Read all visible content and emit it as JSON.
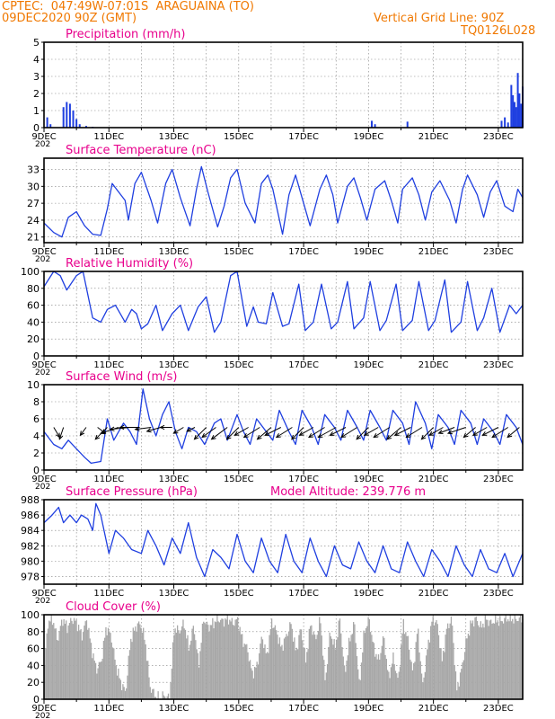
{
  "header": {
    "line1": "CPTEC:  047:49W-07:01S  ARAGUAINA (TO)",
    "line2": "09DEC2020 90Z (GMT)",
    "right1": "Vertical Grid Line: 90Z",
    "right2": "TQ0126L028"
  },
  "colors": {
    "header": "#f07800",
    "title": "#e8008c",
    "series": "#1f3fe0",
    "cloud": "#a8a8a8",
    "grid": "#808080",
    "axis": "#000000",
    "wind_arrow": "#000000"
  },
  "x_axis": {
    "labels": [
      "9DEC",
      "11DEC",
      "13DEC",
      "15DEC",
      "17DEC",
      "19DEC",
      "21DEC",
      "23DEC"
    ],
    "under_label": "202"
  },
  "chart_data": [
    {
      "id": "precip",
      "type": "bar",
      "title": "Precipitation (mm/h)",
      "ylim": [
        0,
        5
      ],
      "yticks": [
        "0",
        "1",
        "2",
        "3",
        "4",
        "5"
      ],
      "x": [
        0.1,
        0.2,
        0.6,
        0.7,
        0.8,
        0.9,
        1.0,
        1.1,
        1.3,
        1.5,
        10.1,
        10.2,
        11.2,
        14.1,
        14.2,
        14.3,
        14.4,
        14.45,
        14.5,
        14.55,
        14.6,
        14.65,
        14.7,
        14.75
      ],
      "values": [
        0.6,
        0.2,
        1.2,
        1.5,
        1.4,
        1.0,
        0.5,
        0.2,
        0.1,
        0.05,
        0.4,
        0.2,
        0.35,
        0.4,
        0.6,
        0.3,
        2.5,
        1.9,
        1.5,
        1.2,
        3.2,
        2.0,
        1.4,
        2.4
      ]
    },
    {
      "id": "temp",
      "type": "line",
      "title": "Surface Temperature (nC)",
      "ylim": [
        20,
        35
      ],
      "yticks": [
        "21",
        "24",
        "27",
        "30",
        "33"
      ],
      "x": [
        0,
        0.3,
        0.55,
        0.75,
        1.0,
        1.25,
        1.5,
        1.75,
        1.95,
        2.1,
        2.3,
        2.5,
        2.6,
        2.8,
        3.0,
        3.3,
        3.5,
        3.75,
        3.95,
        4.2,
        4.5,
        4.7,
        4.85,
        5.05,
        5.35,
        5.55,
        5.75,
        5.95,
        6.2,
        6.5,
        6.7,
        6.9,
        7.05,
        7.35,
        7.55,
        7.75,
        7.95,
        8.2,
        8.5,
        8.7,
        8.9,
        9.05,
        9.35,
        9.55,
        9.75,
        9.95,
        10.2,
        10.5,
        10.7,
        10.9,
        11.05,
        11.35,
        11.55,
        11.75,
        11.95,
        12.2,
        12.5,
        12.7,
        12.9,
        13.05,
        13.35,
        13.55,
        13.75,
        13.95,
        14.2,
        14.45,
        14.6,
        14.75
      ],
      "values": [
        23.5,
        21.8,
        21.0,
        24.5,
        25.5,
        23.0,
        21.5,
        21.3,
        26.0,
        30.5,
        29.0,
        27.5,
        24.0,
        30.5,
        32.5,
        27.5,
        23.5,
        30.5,
        33.0,
        28.0,
        23.0,
        29.5,
        33.5,
        29.0,
        22.8,
        26.5,
        31.5,
        33.0,
        27.0,
        23.5,
        30.5,
        32.0,
        29.5,
        21.5,
        28.5,
        32.0,
        28.0,
        23.0,
        29.5,
        32.0,
        28.5,
        23.5,
        30.0,
        31.5,
        28.0,
        24.0,
        29.5,
        31.0,
        27.5,
        23.5,
        29.5,
        31.5,
        28.5,
        24.0,
        29.0,
        31.0,
        27.5,
        23.5,
        29.5,
        32.0,
        28.5,
        24.5,
        29.0,
        31.0,
        26.5,
        25.5,
        29.5,
        28.0
      ]
    },
    {
      "id": "rh",
      "type": "line",
      "title": "Relative Humidity (%)",
      "ylim": [
        0,
        100
      ],
      "yticks": [
        "0",
        "20",
        "40",
        "60",
        "80",
        "100"
      ],
      "x": [
        0,
        0.3,
        0.5,
        0.7,
        1.0,
        1.2,
        1.5,
        1.75,
        1.95,
        2.2,
        2.5,
        2.7,
        2.85,
        3.0,
        3.2,
        3.45,
        3.65,
        3.95,
        4.2,
        4.45,
        4.75,
        5.0,
        5.25,
        5.45,
        5.75,
        5.95,
        6.25,
        6.45,
        6.6,
        6.85,
        7.05,
        7.35,
        7.55,
        7.85,
        8.05,
        8.3,
        8.55,
        8.85,
        9.05,
        9.35,
        9.55,
        9.85,
        10.05,
        10.35,
        10.55,
        10.85,
        11.05,
        11.35,
        11.55,
        11.85,
        12.05,
        12.35,
        12.55,
        12.85,
        13.05,
        13.35,
        13.55,
        13.8,
        14.05,
        14.35,
        14.55,
        14.75
      ],
      "values": [
        82,
        100,
        95,
        78,
        95,
        100,
        45,
        40,
        55,
        60,
        40,
        55,
        50,
        32,
        38,
        60,
        30,
        50,
        60,
        30,
        58,
        70,
        28,
        40,
        95,
        100,
        35,
        58,
        40,
        38,
        75,
        35,
        38,
        85,
        30,
        40,
        85,
        32,
        40,
        88,
        32,
        45,
        88,
        30,
        42,
        85,
        30,
        42,
        88,
        30,
        42,
        90,
        28,
        40,
        88,
        30,
        45,
        80,
        28,
        60,
        50,
        60
      ]
    },
    {
      "id": "wind",
      "type": "line",
      "title": "Surface Wind (m/s)",
      "ylim": [
        0,
        10
      ],
      "yticks": [
        "0",
        "2",
        "4",
        "6",
        "8",
        "10"
      ],
      "x": [
        0,
        0.3,
        0.55,
        0.75,
        1.0,
        1.25,
        1.45,
        1.75,
        1.95,
        2.15,
        2.45,
        2.65,
        2.85,
        3.05,
        3.25,
        3.45,
        3.65,
        3.85,
        4.05,
        4.25,
        4.45,
        4.7,
        4.95,
        5.25,
        5.45,
        5.65,
        5.95,
        6.15,
        6.35,
        6.55,
        6.85,
        7.05,
        7.25,
        7.55,
        7.75,
        7.95,
        8.25,
        8.45,
        8.65,
        8.95,
        9.15,
        9.35,
        9.65,
        9.85,
        10.05,
        10.35,
        10.55,
        10.75,
        11.05,
        11.25,
        11.45,
        11.75,
        11.95,
        12.15,
        12.45,
        12.65,
        12.85,
        13.15,
        13.35,
        13.55,
        13.85,
        14.05,
        14.25,
        14.55,
        14.75
      ],
      "values": [
        4.5,
        3.0,
        2.5,
        3.5,
        2.5,
        1.5,
        0.8,
        1.0,
        6.0,
        3.5,
        5.5,
        4.5,
        3.0,
        9.5,
        6.0,
        4.0,
        6.5,
        8.0,
        4.5,
        2.5,
        5.0,
        4.5,
        3.0,
        5.5,
        6.0,
        3.5,
        6.5,
        4.5,
        3.0,
        6.0,
        4.5,
        3.5,
        7.0,
        4.5,
        3.0,
        7.0,
        5.0,
        3.0,
        6.5,
        5.0,
        3.5,
        7.0,
        5.0,
        3.5,
        7.0,
        5.0,
        3.5,
        7.0,
        5.5,
        3.0,
        8.0,
        5.5,
        2.5,
        6.5,
        5.0,
        3.0,
        7.0,
        5.5,
        3.0,
        6.0,
        4.5,
        3.0,
        6.5,
        5.0,
        3.0
      ]
    },
    {
      "id": "press",
      "type": "line",
      "title": "Surface Pressure (hPa)",
      "annotation": "Model Altitude: 239.776 m",
      "ylim": [
        977,
        988
      ],
      "yticks": [
        "978",
        "980",
        "982",
        "984",
        "986",
        "988"
      ],
      "x": [
        0,
        0.25,
        0.45,
        0.6,
        0.8,
        1.0,
        1.15,
        1.35,
        1.5,
        1.6,
        1.75,
        2.0,
        2.2,
        2.45,
        2.7,
        3.0,
        3.2,
        3.45,
        3.7,
        3.95,
        4.2,
        4.45,
        4.7,
        4.95,
        5.2,
        5.45,
        5.7,
        5.95,
        6.2,
        6.45,
        6.7,
        6.95,
        7.2,
        7.45,
        7.7,
        7.95,
        8.2,
        8.45,
        8.7,
        8.95,
        9.2,
        9.45,
        9.7,
        9.95,
        10.2,
        10.45,
        10.7,
        10.95,
        11.2,
        11.45,
        11.7,
        11.95,
        12.2,
        12.45,
        12.7,
        12.95,
        13.2,
        13.45,
        13.7,
        13.95,
        14.2,
        14.45,
        14.75
      ],
      "values": [
        985,
        986,
        987,
        985,
        986,
        985,
        986,
        985.5,
        984,
        987.5,
        986,
        981,
        984,
        983,
        981.5,
        981,
        984,
        982,
        979.5,
        983,
        981,
        985,
        980.5,
        978,
        981.5,
        980.5,
        979,
        983.5,
        980,
        978.5,
        983,
        980,
        978.5,
        983.5,
        980,
        978.5,
        983,
        980,
        978,
        982,
        979.5,
        979,
        982.5,
        980,
        978.5,
        982,
        979,
        978.5,
        982.5,
        980,
        978,
        981.5,
        980,
        978,
        982,
        979.5,
        978,
        981.5,
        979,
        978.5,
        981,
        978,
        981
      ]
    },
    {
      "id": "cloud",
      "type": "area",
      "title": "Cloud Cover (%)",
      "ylim": [
        0,
        100
      ],
      "yticks": [
        "0",
        "20",
        "40",
        "60",
        "80",
        "100"
      ],
      "x": [
        0,
        0.1,
        0.25,
        0.4,
        0.55,
        0.7,
        0.85,
        1.0,
        1.15,
        1.3,
        1.45,
        1.6,
        1.75,
        1.9,
        2.05,
        2.2,
        2.35,
        2.5,
        2.65,
        2.8,
        2.95,
        3.1,
        3.25,
        3.4,
        3.55,
        3.7,
        3.85,
        4.0,
        4.15,
        4.3,
        4.45,
        4.6,
        4.75,
        4.9,
        5.05,
        5.2,
        5.35,
        5.5,
        5.65,
        5.8,
        5.95,
        6.1,
        6.25,
        6.4,
        6.55,
        6.7,
        6.85,
        7.0,
        7.15,
        7.3,
        7.45,
        7.6,
        7.75,
        7.9,
        8.05,
        8.2,
        8.35,
        8.5,
        8.65,
        8.8,
        8.95,
        9.1,
        9.25,
        9.4,
        9.55,
        9.7,
        9.85,
        10.0,
        10.15,
        10.3,
        10.45,
        10.6,
        10.75,
        10.9,
        11.05,
        11.2,
        11.35,
        11.5,
        11.65,
        11.8,
        11.95,
        12.1,
        12.25,
        12.4,
        12.55,
        12.7,
        12.85,
        13.0,
        13.15,
        13.3,
        13.45,
        13.6,
        13.75,
        13.9,
        14.05,
        14.2,
        14.35,
        14.5,
        14.65,
        14.75
      ],
      "values": [
        40,
        90,
        95,
        70,
        95,
        85,
        95,
        90,
        75,
        95,
        60,
        35,
        45,
        85,
        75,
        40,
        20,
        8,
        70,
        85,
        90,
        70,
        15,
        5,
        0,
        5,
        0,
        85,
        80,
        90,
        60,
        88,
        40,
        95,
        85,
        90,
        95,
        92,
        96,
        90,
        94,
        70,
        60,
        30,
        40,
        75,
        50,
        92,
        80,
        60,
        75,
        90,
        55,
        85,
        45,
        90,
        70,
        95,
        20,
        80,
        60,
        95,
        30,
        70,
        90,
        15,
        80,
        95,
        60,
        45,
        75,
        25,
        50,
        20,
        90,
        70,
        30,
        85,
        15,
        60,
        95,
        90,
        45,
        85,
        95,
        10,
        35,
        70,
        90,
        95,
        85,
        95,
        90,
        94,
        92,
        95,
        96,
        94,
        96,
        95
      ]
    }
  ],
  "wind_vectors": {
    "x": [
      0.3,
      0.6,
      1.3,
      1.65,
      1.95,
      2.3,
      2.65,
      2.95,
      3.3,
      3.6,
      3.95,
      4.3,
      4.65,
      5.0,
      5.3,
      5.65,
      6.0,
      6.3,
      6.65,
      7.0,
      7.3,
      7.65,
      8.0,
      8.3,
      8.65,
      9.0,
      9.3,
      9.65,
      10.0,
      10.3,
      10.65,
      11.0,
      11.3,
      11.65,
      12.0,
      12.3,
      12.65,
      13.0,
      13.3,
      13.65,
      14.0,
      14.3,
      14.65
    ],
    "u": [
      0.3,
      -0.2,
      -0.3,
      0.4,
      -0.6,
      -0.9,
      -1.0,
      -1.0,
      -0.8,
      -0.7,
      -0.6,
      -0.5,
      -0.4,
      -0.6,
      -0.7,
      -0.8,
      -0.6,
      -0.7,
      -0.8,
      -0.7,
      -0.8,
      -0.8,
      -0.6,
      -0.7,
      -0.8,
      -0.9,
      -0.8,
      -0.8,
      -0.6,
      -0.7,
      -0.8,
      -0.7,
      -0.8,
      -0.8,
      -0.6,
      -0.7,
      -0.8,
      -0.9,
      -0.6,
      -0.7,
      -0.8,
      -0.8,
      -0.6
    ],
    "v": [
      0.5,
      0.6,
      0.4,
      0.3,
      0.6,
      0.3,
      0.1,
      0.0,
      0.1,
      0.2,
      0.0,
      0.3,
      0.2,
      0.6,
      0.5,
      0.6,
      0.6,
      0.4,
      0.5,
      0.6,
      0.4,
      0.5,
      0.6,
      0.4,
      0.5,
      0.5,
      0.4,
      0.5,
      0.6,
      0.4,
      0.5,
      0.6,
      0.4,
      0.5,
      0.6,
      0.4,
      0.3,
      0.3,
      0.5,
      0.4,
      0.4,
      0.5,
      0.5
    ]
  }
}
